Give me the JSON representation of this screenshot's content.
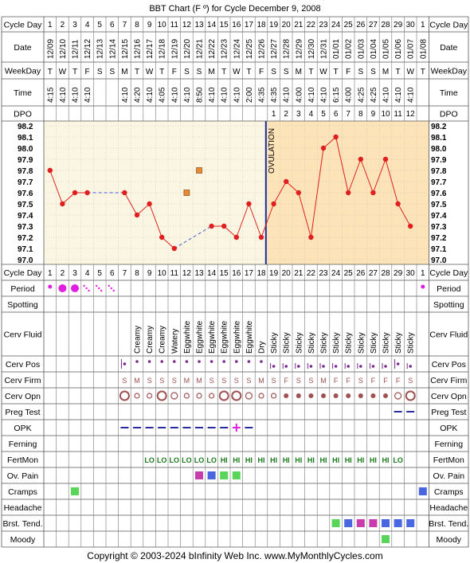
{
  "title": "BBT Chart (F º) for Cycle December 9, 2008",
  "footer": "Copyright © 2003-2024 bInfinity Web Inc.     www.MyMonthlyCycles.com",
  "row_labels": {
    "cycle_day": "Cycle Day",
    "date": "Date",
    "weekday": "WeekDay",
    "time": "Time",
    "dpo": "DPO",
    "period": "Period",
    "spotting": "Spotting",
    "cerv_fluid": "Cerv Fluid",
    "cerv_pos": "Cerv Pos",
    "cerv_firm": "Cerv Firm",
    "cerv_opn": "Cerv Opn",
    "preg_test": "Preg Test",
    "opk": "OPK",
    "ferning": "Ferning",
    "fertmon": "FertMon",
    "ov_pain": "Ov. Pain",
    "cramps": "Cramps",
    "headache": "Headache",
    "brst_tend": "Brst. Tend.",
    "moody": "Moody"
  },
  "colors": {
    "temp_line": "#e02020",
    "pre_ov_bg": "#fbf6e2",
    "post_ov_bg": "#fce3b8",
    "ovulation_line": "#1a2ca0",
    "period_dot": "#e020e0",
    "fertmon": "#1a7a1a",
    "symptom_green": "#59d659",
    "symptom_blue": "#4a66e0",
    "symptom_magenta": "#c83cae",
    "opk_line": "#2a2aa0",
    "cerv_opn": "#a05050",
    "cerv_pos_dot": "#7a2a8a",
    "extra_marker": "#e88a30"
  },
  "chart_data": {
    "type": "line",
    "ylabel": "",
    "ylim": [
      97.0,
      98.2
    ],
    "y_ticks": [
      "98.2",
      "98.1",
      "98.0",
      "97.9",
      "97.8",
      "97.7",
      "97.6",
      "97.5",
      "97.4",
      "97.3",
      "97.2",
      "97.1",
      "97.0"
    ],
    "cycle_days": [
      1,
      2,
      3,
      4,
      5,
      6,
      7,
      8,
      9,
      10,
      11,
      12,
      13,
      14,
      15,
      16,
      17,
      18,
      19,
      20,
      21,
      22,
      23,
      24,
      25,
      26,
      27,
      28,
      29,
      30,
      1
    ],
    "dates": [
      "12/09",
      "12/10",
      "12/11",
      "12/12",
      "12/13",
      "12/14",
      "12/15",
      "12/16",
      "12/17",
      "12/18",
      "12/19",
      "12/20",
      "12/21",
      "12/22",
      "12/23",
      "12/24",
      "12/25",
      "12/26",
      "12/27",
      "12/28",
      "12/29",
      "12/30",
      "12/31",
      "01/01",
      "01/02",
      "01/03",
      "01/04",
      "01/05",
      "01/06",
      "01/07",
      "01/08"
    ],
    "weekdays": [
      "T",
      "W",
      "T",
      "F",
      "S",
      "S",
      "M",
      "T",
      "W",
      "T",
      "F",
      "S",
      "S",
      "M",
      "T",
      "W",
      "T",
      "F",
      "S",
      "S",
      "M",
      "T",
      "W",
      "T",
      "F",
      "S",
      "S",
      "M",
      "T",
      "W",
      "T"
    ],
    "times": [
      "4:15",
      "4:10",
      "4:10",
      "4:10",
      "",
      "",
      "4:10",
      "4:20",
      "4:10",
      "4:05",
      "4:10",
      "4:10",
      "8:50",
      "4:10",
      "4:10",
      "4:10",
      "2:00",
      "4:35",
      "4:35",
      "4:10",
      "4:00",
      "4:10",
      "4:10",
      "6:15",
      "4:00",
      "4:25",
      "4:25",
      "4:10",
      "4:10",
      "4:10",
      ""
    ],
    "dpo": [
      "",
      "",
      "",
      "",
      "",
      "",
      "",
      "",
      "",
      "",
      "",
      "",
      "",
      "",
      "",
      "",
      "",
      "",
      "1",
      "2",
      "3",
      "4",
      "5",
      "6",
      "7",
      "8",
      "9",
      "10",
      "11",
      "12",
      ""
    ],
    "temps": [
      97.8,
      97.5,
      97.6,
      97.6,
      null,
      null,
      97.6,
      97.4,
      97.5,
      97.2,
      97.1,
      null,
      null,
      97.3,
      97.3,
      97.2,
      97.5,
      97.2,
      97.5,
      97.7,
      97.6,
      97.2,
      98.0,
      98.1,
      97.6,
      97.9,
      97.6,
      97.9,
      97.5,
      97.3,
      null
    ],
    "discarded_temps": [
      {
        "day": 12,
        "value": 97.6
      },
      {
        "day": 13,
        "value": 97.8
      }
    ],
    "ovulation_day": 18,
    "ovulation_label": "OVULATION",
    "period": [
      "dot",
      "big",
      "big",
      "light",
      "light",
      "light",
      "",
      "",
      "",
      "",
      "",
      "",
      "",
      "",
      "",
      "",
      "",
      "",
      "",
      "",
      "",
      "",
      "",
      "",
      "",
      "",
      "",
      "",
      "",
      "",
      "dot"
    ],
    "cerv_fluid": [
      "",
      "",
      "",
      "",
      "",
      "",
      "",
      "Creamy",
      "Creamy",
      "Creamy",
      "Watery",
      "Eggwhite",
      "Eggwhite",
      "Eggwhite",
      "Eggwhite",
      "Eggwhite",
      "Eggwhite",
      "Dry",
      "Sticky",
      "Sticky",
      "Sticky",
      "Sticky",
      "Sticky",
      "Sticky",
      "Sticky",
      "Sticky",
      "Sticky",
      "Sticky",
      "Sticky",
      "Sticky",
      ""
    ],
    "cerv_pos": [
      "",
      "",
      "",
      "",
      "",
      "",
      "mid",
      "high",
      "high",
      "high",
      "high",
      "high",
      "high",
      "high",
      "high",
      "high",
      "high",
      "high",
      "low",
      "low",
      "low",
      "low",
      "low",
      "low",
      "low",
      "low",
      "low",
      "low",
      "mid",
      "low",
      ""
    ],
    "cerv_firm": [
      "",
      "",
      "",
      "",
      "",
      "",
      "S",
      "M",
      "S",
      "S",
      "S",
      "M",
      "M",
      "S",
      "S",
      "S",
      "S",
      "M",
      "S",
      "F",
      "S",
      "S",
      "M",
      "F",
      "F",
      "S",
      "F",
      "F",
      "F",
      "S",
      ""
    ],
    "cerv_opn": [
      "",
      "",
      "",
      "",
      "",
      "",
      "l",
      "s",
      "s",
      "l",
      "m",
      "s",
      "s",
      "s",
      "l",
      "l",
      "m",
      "s",
      "s",
      "p",
      "p",
      "p",
      "p",
      "p",
      "p",
      "p",
      "p",
      "p",
      "m",
      "l",
      ""
    ],
    "preg_test": [
      "",
      "",
      "",
      "",
      "",
      "",
      "",
      "",
      "",
      "",
      "",
      "",
      "",
      "",
      "",
      "",
      "",
      "",
      "",
      "",
      "",
      "",
      "",
      "",
      "",
      "",
      "",
      "",
      "neg",
      "neg",
      ""
    ],
    "opk": [
      "",
      "",
      "",
      "",
      "",
      "",
      "neg",
      "neg",
      "neg",
      "neg",
      "neg",
      "neg",
      "neg",
      "neg",
      "neg",
      "pos",
      "neg",
      "",
      "",
      "",
      "",
      "",
      "",
      "",
      "",
      "",
      "",
      "",
      "",
      "",
      ""
    ],
    "fertmon": [
      "",
      "",
      "",
      "",
      "",
      "",
      "",
      "",
      "LO",
      "LO",
      "LO",
      "LO",
      "LO",
      "LO",
      "HI",
      "HI",
      "HI",
      "HI",
      "HI",
      "HI",
      "HI",
      "HI",
      "HI",
      "HI",
      "HI",
      "HI",
      "HI",
      "HI",
      "LO",
      "",
      ""
    ],
    "ov_pain": [
      "",
      "",
      "",
      "",
      "",
      "",
      "",
      "",
      "",
      "",
      "",
      "",
      "magenta",
      "blue",
      "green",
      "green",
      "",
      "",
      "",
      "",
      "",
      "",
      "",
      "",
      "",
      "",
      "",
      "",
      "",
      "",
      ""
    ],
    "cramps": [
      "",
      "",
      "green",
      "",
      "",
      "",
      "",
      "",
      "",
      "",
      "",
      "",
      "",
      "",
      "",
      "",
      "",
      "",
      "",
      "",
      "",
      "",
      "",
      "",
      "",
      "",
      "",
      "",
      "",
      "",
      "blue"
    ],
    "headache": [
      "",
      "",
      "",
      "",
      "",
      "",
      "",
      "",
      "",
      "",
      "",
      "",
      "",
      "",
      "",
      "",
      "",
      "",
      "",
      "",
      "",
      "",
      "",
      "",
      "",
      "",
      "",
      "",
      "",
      "",
      ""
    ],
    "brst_tend": [
      "",
      "",
      "",
      "",
      "",
      "",
      "",
      "",
      "",
      "",
      "",
      "",
      "",
      "",
      "",
      "",
      "",
      "",
      "",
      "",
      "",
      "",
      "",
      "green",
      "blue",
      "magenta",
      "magenta",
      "blue",
      "blue",
      "blue",
      ""
    ],
    "moody": [
      "",
      "",
      "",
      "",
      "",
      "",
      "",
      "",
      "",
      "",
      "",
      "",
      "",
      "",
      "",
      "",
      "",
      "",
      "",
      "",
      "",
      "",
      "",
      "",
      "",
      "",
      "",
      "green",
      "",
      "",
      ""
    ]
  }
}
